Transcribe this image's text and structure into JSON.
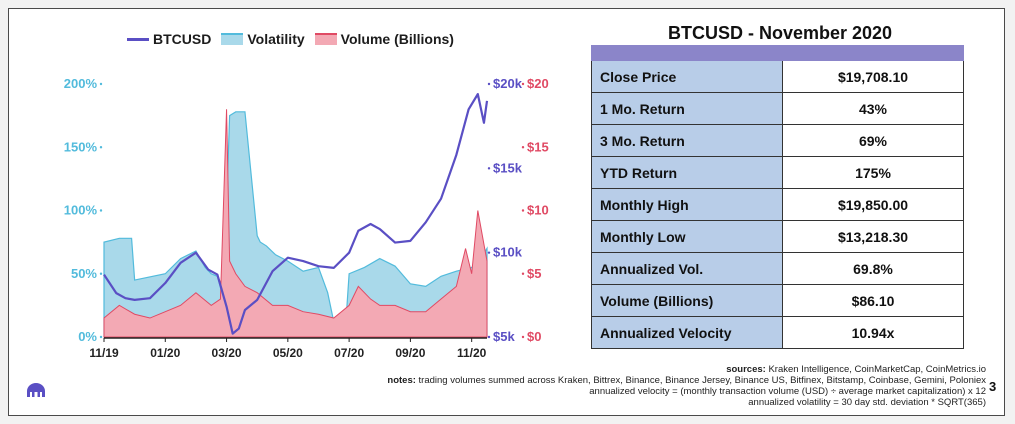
{
  "table": {
    "title": "BTCUSD - November 2020",
    "rows": [
      {
        "label": "Close Price",
        "value": "$19,708.10"
      },
      {
        "label": "1 Mo. Return",
        "value": "43%"
      },
      {
        "label": "3 Mo. Return",
        "value": "69%"
      },
      {
        "label": "YTD Return",
        "value": "175%"
      },
      {
        "label": "Monthly High",
        "value": "$19,850.00"
      },
      {
        "label": "Monthly Low",
        "value": "$13,218.30"
      },
      {
        "label": "Annualized Vol.",
        "value": "69.8%"
      },
      {
        "label": "Volume (Billions)",
        "value": "$86.10"
      },
      {
        "label": "Annualized Velocity",
        "value": "10.94x"
      }
    ]
  },
  "notes": {
    "sources_label": "sources:",
    "sources_text": "Kraken Intelligence, CoinMarketCap, CoinMetrics.io",
    "notes_label": "notes:",
    "line1": "trading volumes summed across Kraken, Bittrex, Binance, Binance Jersey, Binance US, Bitfinex, Bitstamp, Coinbase, Gemini, Poloniex",
    "line2": "annualized velocity = (monthly transaction volume (USD) ÷ average market capitalization) x 12",
    "line3": "annualized volatility = 30 day std. deviation * SQRT(365)"
  },
  "page_number": "3",
  "colors": {
    "btc": "#5a4fc4",
    "volatility_fill": "#a9d9ea",
    "volatility_line": "#52bbdc",
    "volume_fill": "#f3a9b4",
    "volume_line": "#e04a64",
    "header_bar": "#8b85c9",
    "label_cell": "#b8cde8"
  },
  "chart_data": {
    "type": "area",
    "legend": [
      {
        "name": "BTCUSD",
        "kind": "line",
        "color": "#5a4fc4"
      },
      {
        "name": "Volatility",
        "kind": "area",
        "color": "#a9d9ea"
      },
      {
        "name": "Volume (Billions)",
        "kind": "area",
        "color": "#f3a9b4"
      }
    ],
    "x_ticks": [
      "11/19",
      "01/20",
      "03/20",
      "05/20",
      "07/20",
      "09/20",
      "11/20"
    ],
    "x_range_months": [
      0,
      12.5
    ],
    "axes": {
      "volatility": {
        "ticks": [
          "0%",
          "50%",
          "100%",
          "150%",
          "200%"
        ],
        "range": [
          0,
          200
        ],
        "side": "left",
        "color": "#52bbdc"
      },
      "btc": {
        "ticks": [
          "$5k",
          "$10k",
          "$15k",
          "$20k"
        ],
        "range": [
          5000,
          20000
        ],
        "side": "right",
        "color": "#5a4fc4"
      },
      "volume": {
        "ticks": [
          "$0",
          "$5",
          "$10",
          "$15",
          "$20"
        ],
        "range": [
          0,
          20
        ],
        "side": "right",
        "color": "#e04a64"
      }
    },
    "series": [
      {
        "name": "BTCUSD",
        "x": [
          0,
          0.4,
          0.7,
          1.0,
          1.5,
          2.0,
          2.5,
          3.0,
          3.4,
          3.7,
          4.0,
          4.2,
          4.4,
          4.6,
          5.0,
          5.5,
          6.0,
          6.5,
          7.0,
          7.5,
          8.0,
          8.3,
          8.7,
          9.0,
          9.5,
          10.0,
          10.5,
          11.0,
          11.5,
          11.9,
          12.2,
          12.4,
          12.5
        ],
        "y": [
          8700,
          7600,
          7300,
          7200,
          7300,
          8200,
          9400,
          10000,
          9000,
          8700,
          6800,
          5200,
          5500,
          6600,
          7200,
          8900,
          9700,
          9500,
          9200,
          9100,
          10000,
          11300,
          11700,
          11400,
          10600,
          10700,
          11800,
          13200,
          15800,
          18500,
          19400,
          17700,
          19000
        ]
      },
      {
        "name": "Volatility",
        "x": [
          0,
          0.5,
          0.9,
          1.0,
          2.0,
          2.5,
          3.0,
          3.3,
          3.5,
          3.7,
          3.9,
          4.1,
          4.3,
          4.6,
          5.0,
          5.1,
          5.3,
          5.6,
          6.0,
          6.5,
          7.0,
          7.3,
          7.5,
          7.9,
          8.0,
          8.5,
          9.0,
          9.5,
          10.0,
          10.5,
          11.0,
          11.5,
          12.0,
          12.3,
          12.5
        ],
        "y": [
          75,
          78,
          78,
          45,
          50,
          62,
          68,
          55,
          50,
          48,
          30,
          175,
          178,
          178,
          80,
          75,
          72,
          65,
          60,
          52,
          55,
          35,
          12,
          14,
          50,
          55,
          62,
          56,
          42,
          40,
          48,
          52,
          55,
          62,
          70
        ]
      },
      {
        "name": "Volume (Billions)",
        "x": [
          0,
          0.5,
          1.0,
          1.5,
          2.0,
          2.5,
          3.0,
          3.5,
          3.8,
          4.0,
          4.1,
          4.3,
          4.6,
          5.0,
          5.5,
          6.0,
          6.5,
          7.0,
          7.5,
          8.0,
          8.3,
          8.7,
          9.0,
          9.5,
          10.0,
          10.5,
          11.0,
          11.5,
          11.8,
          12.0,
          12.2,
          12.5
        ],
        "y": [
          1.5,
          2.5,
          1.8,
          1.5,
          2.0,
          2.5,
          3.5,
          2.5,
          3.0,
          18.0,
          6.0,
          5.0,
          4.0,
          3.5,
          2.5,
          2.5,
          2.0,
          1.8,
          1.5,
          2.5,
          4.0,
          3.0,
          2.5,
          2.5,
          2.0,
          2.0,
          3.0,
          4.0,
          7.0,
          5.0,
          10.0,
          6.0
        ]
      }
    ]
  }
}
